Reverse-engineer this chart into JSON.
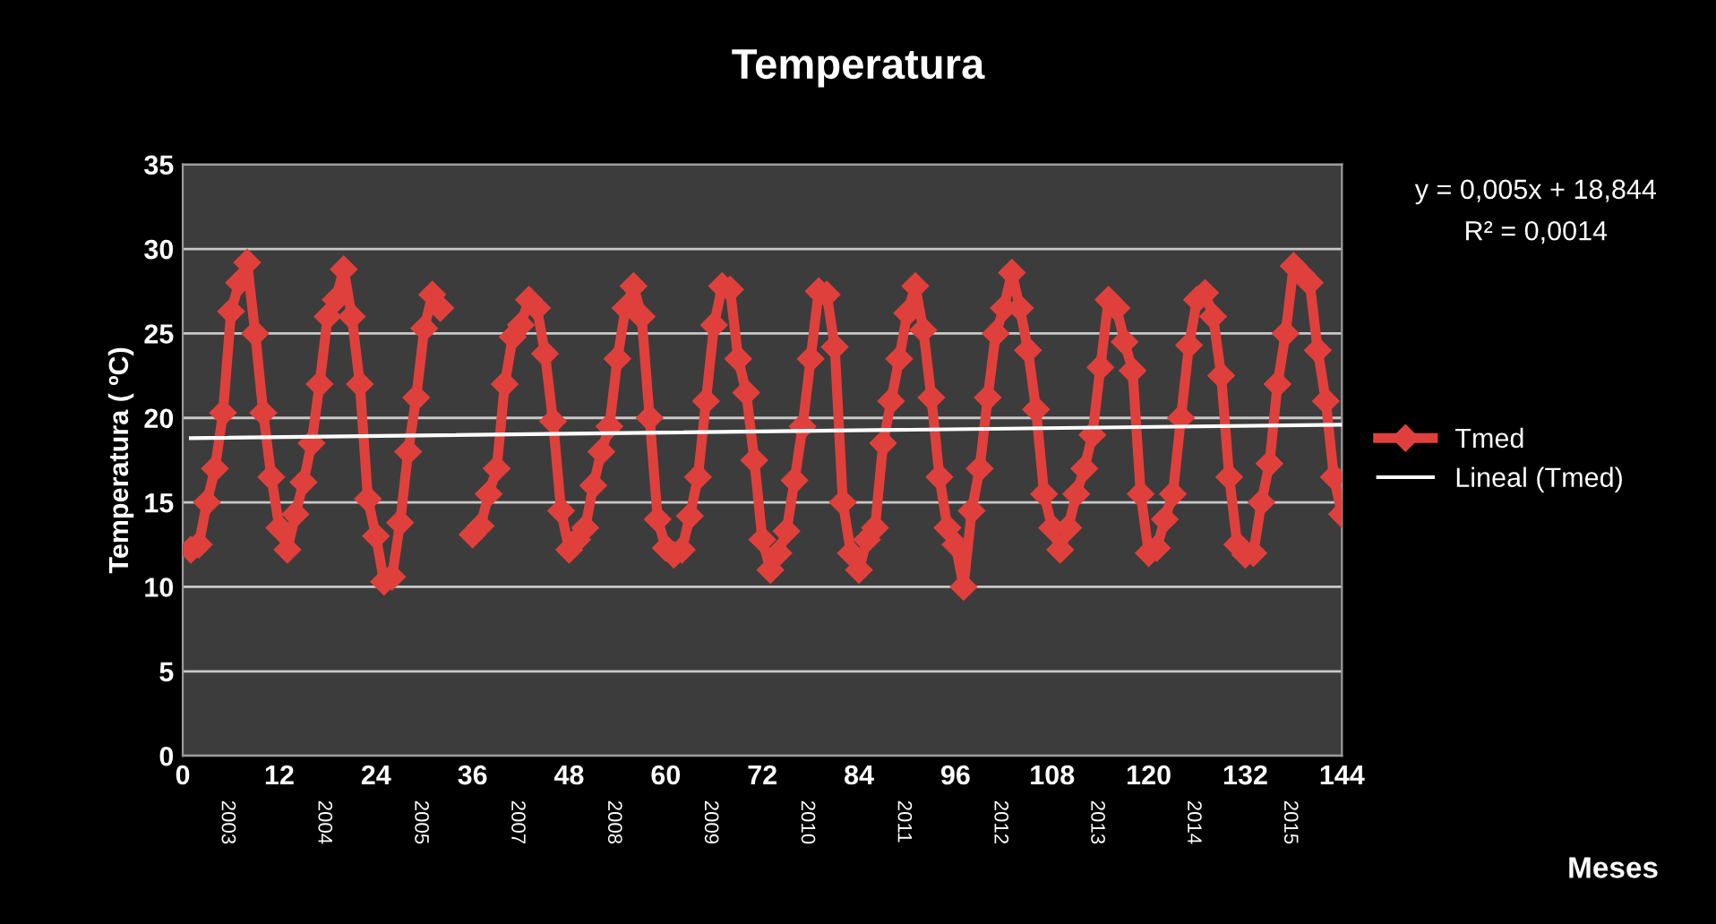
{
  "chart_data": {
    "type": "line",
    "title": "Temperatura",
    "ylabel": "Temperatura ( ºC)",
    "xlim": [
      0,
      144
    ],
    "xticks": [
      0,
      12,
      24,
      36,
      48,
      60,
      72,
      84,
      96,
      108,
      120,
      132,
      144
    ],
    "ylim": [
      0,
      35
    ],
    "yticks": [
      0,
      5,
      10,
      15,
      20,
      25,
      30,
      35
    ],
    "grid": "y",
    "legend": "right",
    "x": [
      1,
      2,
      3,
      4,
      5,
      6,
      7,
      8,
      9,
      10,
      11,
      12,
      13,
      14,
      15,
      16,
      17,
      18,
      19,
      20,
      21,
      22,
      23,
      24,
      25,
      26,
      27,
      28,
      29,
      30,
      31,
      32,
      33,
      34,
      35,
      36,
      37,
      38,
      39,
      40,
      41,
      42,
      43,
      44,
      45,
      46,
      47,
      48,
      49,
      50,
      51,
      52,
      53,
      54,
      55,
      56,
      57,
      58,
      59,
      60,
      61,
      62,
      63,
      64,
      65,
      66,
      67,
      68,
      69,
      70,
      71,
      72,
      73,
      74,
      75,
      76,
      77,
      78,
      79,
      80,
      81,
      82,
      83,
      84,
      85,
      86,
      87,
      88,
      89,
      90,
      91,
      92,
      93,
      94,
      95,
      96,
      97,
      98,
      99,
      100,
      101,
      102,
      103,
      104,
      105,
      106,
      107,
      108,
      109,
      110,
      111,
      112,
      113,
      114,
      115,
      116,
      117,
      118,
      119,
      120,
      121,
      122,
      123,
      124,
      125,
      126,
      127,
      128,
      129,
      130,
      131,
      132,
      133,
      134,
      135,
      136,
      137,
      138,
      139,
      140,
      141,
      142,
      143,
      144
    ],
    "series": [
      {
        "name": "Tmed",
        "color": "#e0403c",
        "marker": "diamond",
        "line_style": "solid",
        "values": [
          12.2,
          12.5,
          15,
          17,
          20.3,
          26.3,
          28,
          29.2,
          25,
          20.3,
          16.5,
          13.5,
          12.2,
          14.3,
          16.2,
          18.5,
          22,
          26,
          27,
          28.8,
          26,
          22,
          15.2,
          13,
          10.3,
          10.6,
          13.8,
          18,
          21.2,
          25.3,
          27.3,
          26.5,
          null,
          null,
          null,
          13.1,
          13.6,
          15.5,
          17,
          22,
          24.8,
          25.5,
          27,
          26.5,
          23.8,
          19.8,
          14.5,
          12.2,
          12.8,
          13.5,
          16,
          18,
          19.5,
          23.5,
          26.5,
          27.8,
          26,
          20,
          14,
          12.3,
          11.9,
          12.2,
          14.2,
          16.5,
          21,
          25.5,
          27.8,
          27.6,
          23.5,
          21.5,
          17.5,
          12.8,
          11,
          12,
          13.3,
          16.3,
          19.5,
          23.5,
          27.5,
          27.3,
          24.2,
          15,
          12,
          11,
          12.8,
          13.5,
          18.5,
          21,
          23.5,
          26.2,
          27.8,
          25.2,
          21.2,
          16.5,
          13.5,
          12.5,
          10,
          14.5,
          17,
          21.2,
          25,
          26.5,
          28.6,
          26.5,
          24,
          20.5,
          15.5,
          13.5,
          12.2,
          13.5,
          15.5,
          17,
          19,
          23,
          27,
          26.5,
          24.5,
          22.8,
          15.5,
          12,
          12.3,
          14,
          15.5,
          20,
          24.3,
          27,
          27.4,
          26,
          22.5,
          16.5,
          12.5,
          11.9,
          12,
          15,
          17.3,
          22,
          25,
          29,
          28.5,
          28,
          24,
          21,
          16.5,
          14.3
        ]
      },
      {
        "name": "Lineal (Tmed)",
        "color": "#ffffff",
        "marker": "none",
        "line_style": "solid",
        "x": [
          1,
          144
        ],
        "values": [
          18.8,
          19.6
        ]
      }
    ],
    "annotations": [
      "y = 0,005x + 18,844",
      "R² = 0,0014",
      "Meses",
      "2003",
      "2004",
      "2005",
      "2007",
      "2008",
      "2009",
      "2010",
      "2011",
      "2012",
      "2013",
      "2014",
      "2015"
    ]
  }
}
